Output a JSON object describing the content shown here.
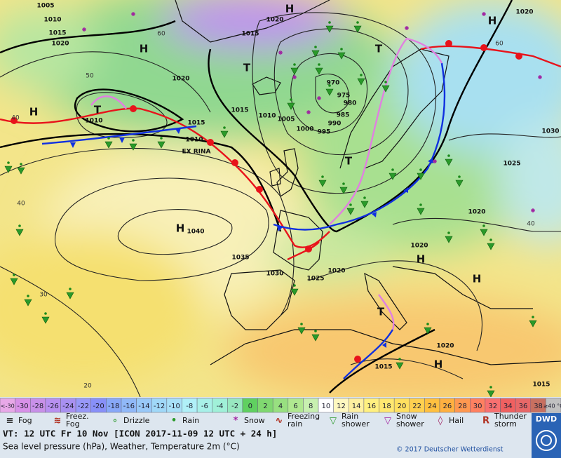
{
  "map": {
    "isobar_labels": [
      1005,
      1010,
      1015,
      1020,
      1020,
      1015,
      1010,
      1005,
      1000,
      995,
      990,
      985,
      980,
      975,
      970,
      1010,
      1015,
      1010,
      1020,
      1015,
      1020,
      1030,
      1025,
      1020,
      1020,
      1020,
      1025,
      1030,
      1035,
      1040,
      1020,
      1015,
      1015
    ],
    "pressure_centers": [
      "H",
      "H",
      "H",
      "H",
      "T",
      "H",
      "T",
      "T",
      "H",
      "H",
      "T",
      "H",
      "T"
    ],
    "latitudes": [
      60,
      50,
      40,
      40,
      30,
      20,
      60,
      40
    ],
    "storm_name": "EX RINA"
  },
  "temperature_scale": {
    "low": "<-30",
    "values": [
      -30,
      -28,
      -26,
      -24,
      -22,
      -20,
      -18,
      -16,
      -14,
      -12,
      -10,
      -8,
      -6,
      -4,
      -2,
      0,
      2,
      4,
      6,
      8,
      10,
      12,
      14,
      16,
      18,
      20,
      22,
      24,
      26,
      28,
      30,
      32,
      34,
      36,
      38
    ],
    "high": "≥40 °C",
    "colors": [
      "#e8a8e8",
      "#d890e8",
      "#c890e8",
      "#b890f0",
      "#a890f0",
      "#9898f8",
      "#8890f8",
      "#88a8f8",
      "#90b8f8",
      "#98c8f8",
      "#a0d8f8",
      "#a8e0f8",
      "#b0f0f8",
      "#a8f0e8",
      "#a0f0d8",
      "#98e8c0",
      "#60d060",
      "#80d870",
      "#98e080",
      "#b0e890",
      "#c8f0b0",
      "#ffffff",
      "#fff8c0",
      "#fff0a0",
      "#fff080",
      "#ffe870",
      "#ffe060",
      "#ffd050",
      "#ffc040",
      "#ffb040",
      "#ff9850",
      "#ff8060",
      "#f87070",
      "#f06060",
      "#e86868",
      "#c87060",
      "#c0c0c0"
    ]
  },
  "weather_legend": [
    [
      "Fog"
    ],
    [
      "Freez.",
      "Fog"
    ],
    [
      "Drizzle"
    ],
    [
      "Rain"
    ],
    [
      "Snow"
    ],
    [
      "Freezing",
      "rain"
    ],
    [
      "Rain",
      "shower"
    ],
    [
      "Snow",
      "shower"
    ],
    [
      "Hail"
    ],
    [
      "Thunder",
      "storm"
    ]
  ],
  "footer": {
    "valid_time": "VT: 12 UTC Fr  10 Nov [ICON 2017-11-09  12 UTC + 24 h]",
    "description": "Sea level pressure (hPa), Weather, Temperature 2m (°C)",
    "copyright": "© 2017 Deutscher Wetterdienst",
    "logo": "DWD"
  }
}
